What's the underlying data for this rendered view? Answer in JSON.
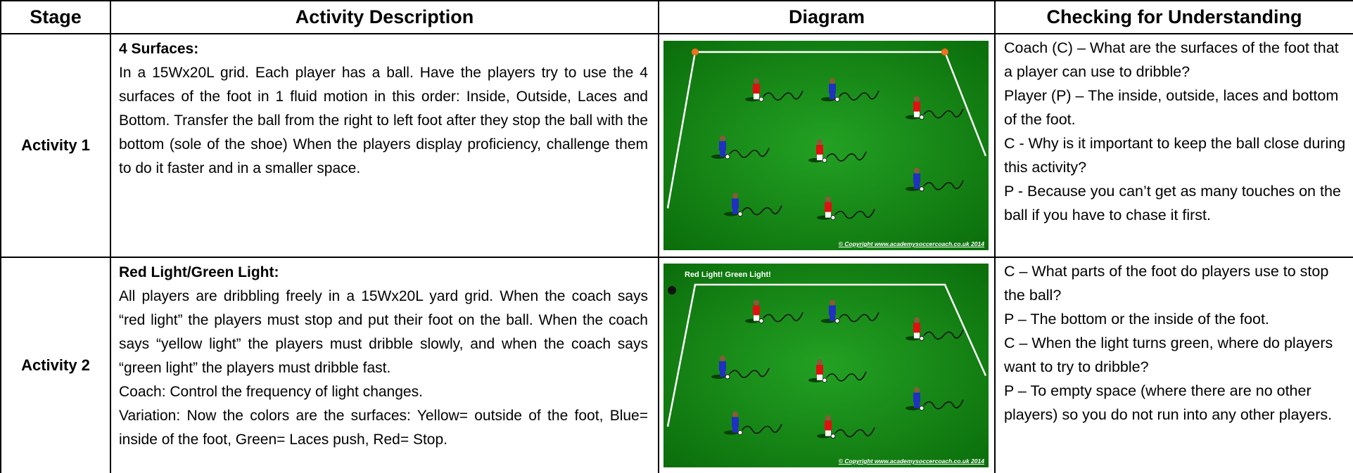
{
  "table": {
    "header": [
      "Stage",
      "Activity Description",
      "Diagram",
      "Checking for Understanding"
    ],
    "rows": [
      {
        "stage": "Activity 1",
        "title": "4 Surfaces:",
        "description": [
          "In a 15Wx20L grid. Each player has a ball. Have the players try to use the 4 surfaces of the foot in 1 fluid motion in this order: Inside, Outside, Laces and Bottom. Transfer the ball from the right to left foot after they stop the ball with the bottom (sole of the shoe) When the players display proficiency, challenge them to do it faster and in a smaller space."
        ],
        "diagram": {
          "copyright": "© Copyright www.academysoccercoach.co.uk 2014"
        },
        "checking": [
          "Coach (C) – What are the surfaces of the foot that a player can use to dribble?",
          "Player (P) – The inside, outside, laces and bottom of the foot.",
          "C - Why is it important to keep the ball close during this activity?",
          "P - Because you can’t get as many touches on the ball if you have to chase it first."
        ]
      },
      {
        "stage": "Activity 2",
        "title": "Red Light/Green Light:",
        "description": [
          "All players are dribbling freely in a 15Wx20L yard grid. When the coach says “red light” the players must stop and put their foot on the ball. When the coach says “yellow light” the players must dribble slowly, and when the coach says “green light” the players must dribble fast.",
          "Coach: Control the frequency of light changes.",
          "Variation: Now the colors are the surfaces: Yellow= outside of the foot, Blue= inside of the foot, Green= Laces push, Red= Stop."
        ],
        "diagram": {
          "caption": "Red Light!  Green Light!",
          "copyright": "© Copyright www.academysoccercoach.co.uk 2014"
        },
        "checking": [
          "C – What parts of the foot do players use to stop the ball?",
          "P – The bottom or the inside of the foot.",
          "C – When the light turns green, where do players want to try to dribble?",
          "P – To empty space (where there are no other players) so you do not run into any other players."
        ]
      }
    ]
  }
}
